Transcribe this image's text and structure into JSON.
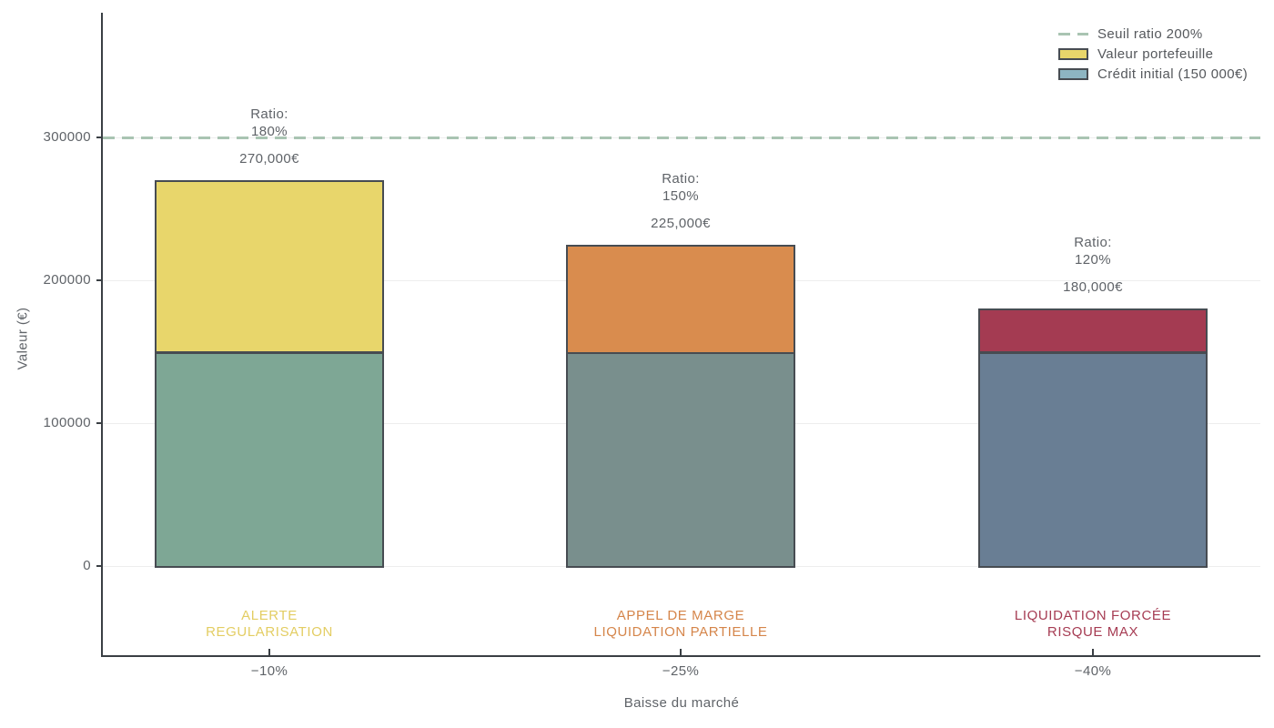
{
  "chart_data": {
    "type": "bar",
    "stacked": true,
    "title": "",
    "xlabel": "Baisse du marché",
    "ylabel": "Valeur (€)",
    "categories": [
      "−10%",
      "−25%",
      "−40%"
    ],
    "series": [
      {
        "name": "Crédit initial (150 000€)",
        "values": [
          150000,
          150000,
          150000
        ],
        "colors": [
          "#7ea795",
          "#798f8d",
          "#697e94"
        ]
      },
      {
        "name": "Valeur portefeuille",
        "values": [
          120000,
          75000,
          30000
        ],
        "colors": [
          "#e8d66b",
          "#d98c4e",
          "#a43b52"
        ]
      }
    ],
    "bar_totals": [
      270000,
      225000,
      180000
    ],
    "total_labels": [
      "270,000€",
      "225,000€",
      "180,000€"
    ],
    "ratio_annotations": [
      [
        "Ratio:",
        "180%"
      ],
      [
        "Ratio:",
        "150%"
      ],
      [
        "Ratio:",
        "120%"
      ]
    ],
    "status_labels": [
      {
        "lines": [
          "ALERTE",
          "REGULARISATION"
        ],
        "color": "#e3cd62"
      },
      {
        "lines": [
          "APPEL DE MARGE",
          "LIQUIDATION PARTIELLE"
        ],
        "color": "#d5854a"
      },
      {
        "lines": [
          "LIQUIDATION FORCÉE",
          "RISQUE MAX"
        ],
        "color": "#a63c53"
      }
    ],
    "threshold": {
      "value": 300000,
      "label": "Seuil ratio 200%",
      "color": "#a9c4b2"
    },
    "yticks": [
      0,
      100000,
      200000,
      300000
    ],
    "ytick_labels": [
      "0",
      "100000",
      "200000",
      "300000"
    ],
    "ylim": [
      -64000,
      390000
    ],
    "grid": true,
    "legend_position": "upper right",
    "legend": [
      {
        "label": "Seuil ratio 200%",
        "swatch": "dashed-line",
        "color": "#a9c4b2"
      },
      {
        "label": "Valeur portefeuille",
        "swatch": "rect",
        "color": "#e8d66b"
      },
      {
        "label": "Crédit initial (150 000€)",
        "swatch": "rect",
        "color": "#8db5c2"
      }
    ],
    "bar_edge_color": "#474c52"
  }
}
